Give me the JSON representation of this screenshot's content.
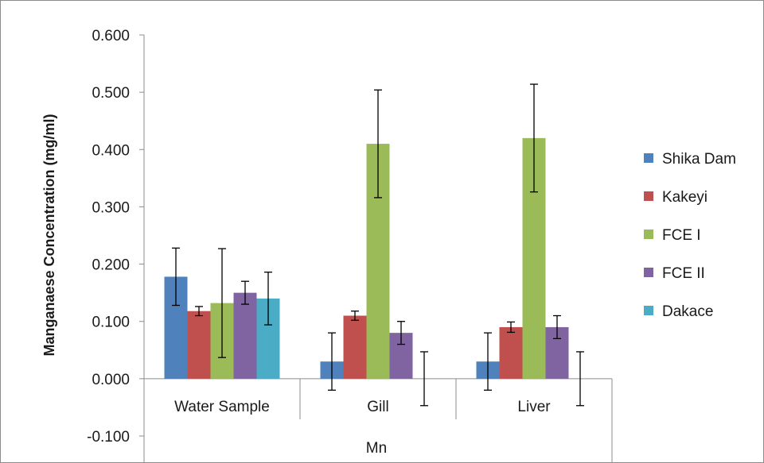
{
  "chart_data": {
    "type": "bar",
    "title": "",
    "ylabel": "Manganaese Concentration (mg/ml)",
    "group_label": "Mn",
    "categories": [
      "Water Sample",
      "Gill",
      "Liver"
    ],
    "y_ticks": [
      "0.600",
      "0.500",
      "0.400",
      "0.300",
      "0.200",
      "0.100",
      "0.000",
      "-0.100"
    ],
    "ylim": [
      -0.1,
      0.6
    ],
    "grid": false,
    "legend_position": "right",
    "series": [
      {
        "name": "Shika Dam",
        "color": "#4f81bd",
        "values": [
          0.178,
          0.03,
          0.03
        ],
        "errors": [
          0.05,
          0.05,
          0.05
        ]
      },
      {
        "name": "Kakeyi",
        "color": "#c0504d",
        "values": [
          0.118,
          0.11,
          0.09
        ],
        "errors": [
          0.008,
          0.008,
          0.009
        ]
      },
      {
        "name": "FCE I",
        "color": "#9bbb59",
        "values": [
          0.132,
          0.41,
          0.42
        ],
        "errors": [
          0.095,
          0.094,
          0.094
        ]
      },
      {
        "name": "FCE II",
        "color": "#8064a2",
        "values": [
          0.15,
          0.08,
          0.09
        ],
        "errors": [
          0.02,
          0.02,
          0.02
        ]
      },
      {
        "name": "Dakace",
        "color": "#4bacc6",
        "values": [
          0.14,
          0.0,
          0.0
        ],
        "errors": [
          0.046,
          0.047,
          0.047
        ]
      }
    ]
  }
}
